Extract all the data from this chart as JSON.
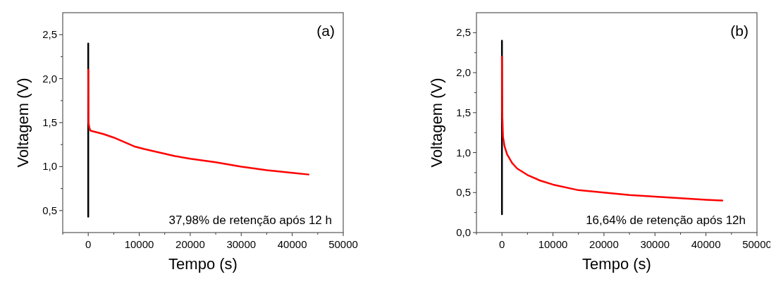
{
  "chart_data": [
    {
      "type": "line",
      "xlabel": "Tempo (s)",
      "ylabel": "Voltagem (V)",
      "annotations": [
        "(a)",
        "37,98% de retenção após 12 h"
      ],
      "xlim": [
        -5000,
        50000
      ],
      "ylim": [
        0.25,
        2.75
      ],
      "xticks": [
        {
          "value": -5000,
          "label": null
        },
        0,
        {
          "value": 5000,
          "label": null
        },
        10000,
        {
          "value": 15000,
          "label": null
        },
        20000,
        {
          "value": 25000,
          "label": null
        },
        30000,
        {
          "value": 35000,
          "label": null
        },
        40000,
        {
          "value": 45000,
          "label": null
        },
        50000
      ],
      "yticks": [
        {
          "value": 0.5,
          "label": "0,5"
        },
        {
          "value": 0.75,
          "label": null
        },
        {
          "value": 1.0,
          "label": "1,0"
        },
        {
          "value": 1.25,
          "label": null
        },
        {
          "value": 1.5,
          "label": "1,5"
        },
        {
          "value": 1.75,
          "label": null
        },
        {
          "value": 2.0,
          "label": "2,0"
        },
        {
          "value": 2.25,
          "label": null
        },
        {
          "value": 2.5,
          "label": "2,5"
        }
      ],
      "series": [
        {
          "color": "#000000",
          "x": [
            0,
            0,
            0
          ],
          "values": [
            0.43,
            1.0,
            2.4
          ]
        },
        {
          "color": "#ff0000",
          "x": [
            0,
            50,
            200,
            400,
            1000,
            3000,
            5000,
            7000,
            9000,
            11000,
            14000,
            17000,
            20000,
            25000,
            30000,
            35000,
            40000,
            43200
          ],
          "values": [
            2.1,
            1.5,
            1.45,
            1.41,
            1.4,
            1.37,
            1.33,
            1.28,
            1.23,
            1.2,
            1.16,
            1.12,
            1.09,
            1.05,
            1.0,
            0.96,
            0.93,
            0.91
          ]
        }
      ]
    },
    {
      "type": "line",
      "xlabel": "Tempo (s)",
      "ylabel": "Voltagem (V)",
      "annotations": [
        "(b)",
        "16,64% de retenção após 12h"
      ],
      "xlim": [
        -5000,
        50000
      ],
      "ylim": [
        0,
        2.75
      ],
      "xticks": [
        {
          "value": -5000,
          "label": null
        },
        0,
        {
          "value": 5000,
          "label": null
        },
        10000,
        {
          "value": 15000,
          "label": null
        },
        20000,
        {
          "value": 25000,
          "label": null
        },
        30000,
        {
          "value": 35000,
          "label": null
        },
        40000,
        {
          "value": 45000,
          "label": null
        },
        50000
      ],
      "yticks": [
        {
          "value": 0,
          "label": "0,0"
        },
        {
          "value": 0.25,
          "label": null
        },
        {
          "value": 0.5,
          "label": "0,5"
        },
        {
          "value": 0.75,
          "label": null
        },
        {
          "value": 1.0,
          "label": "1,0"
        },
        {
          "value": 1.25,
          "label": null
        },
        {
          "value": 1.5,
          "label": "1,5"
        },
        {
          "value": 1.75,
          "label": null
        },
        {
          "value": 2.0,
          "label": "2,0"
        },
        {
          "value": 2.25,
          "label": null
        },
        {
          "value": 2.5,
          "label": "2,5"
        }
      ],
      "series": [
        {
          "color": "#000000",
          "x": [
            0,
            0,
            0
          ],
          "values": [
            0.23,
            0.8,
            2.4
          ]
        },
        {
          "color": "#ff0000",
          "x": [
            0,
            50,
            200,
            500,
            1000,
            2000,
            3000,
            5000,
            7500,
            10000,
            15000,
            20000,
            25000,
            30000,
            35000,
            40000,
            43200
          ],
          "values": [
            2.2,
            1.5,
            1.2,
            1.08,
            0.98,
            0.87,
            0.8,
            0.72,
            0.65,
            0.6,
            0.53,
            0.5,
            0.47,
            0.45,
            0.43,
            0.41,
            0.4
          ]
        }
      ]
    }
  ]
}
